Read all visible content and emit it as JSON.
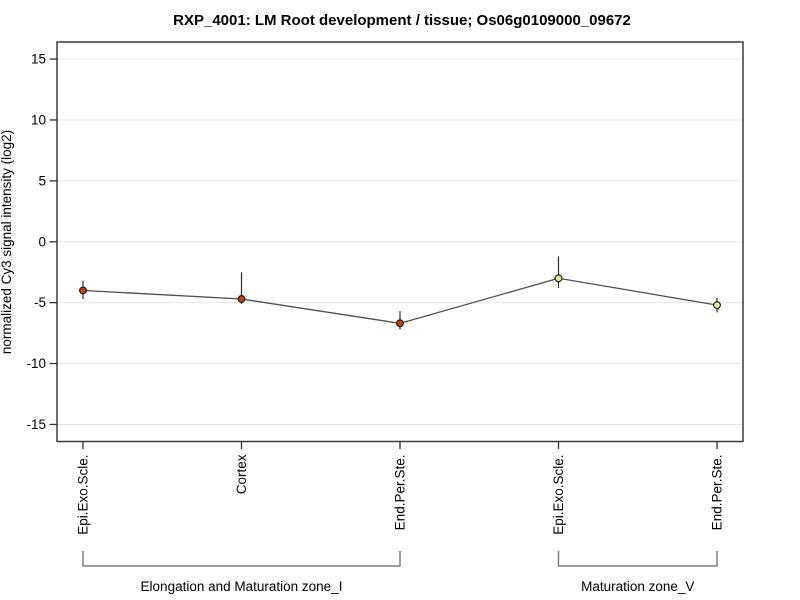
{
  "title": "RXP_4001: LM Root development / tissue; Os06g0109000_09672",
  "chart_data": {
    "type": "line",
    "title": "RXP_4001: LM Root development / tissue; Os06g0109000_09672",
    "xlabel": "",
    "ylabel": "normalized Cy3 signal intensity (log2)",
    "ylim": [
      -16.4,
      16.4
    ],
    "yticks": [
      15,
      10,
      5,
      0,
      -5,
      -10,
      -15
    ],
    "grid": "horizontal light-gray lines at every y tick",
    "legend": "none",
    "categories": [
      "Epi.Exo.Scle.",
      "Cortex",
      "End.Per.Ste.",
      "Epi.Exo.Scle.",
      "End.Per.Ste."
    ],
    "series": [
      {
        "name": "normalized Cy3 signal intensity",
        "values": [
          -4.0,
          -4.7,
          -6.7,
          -3.0,
          -5.2
        ],
        "error_high": [
          -3.2,
          -2.5,
          -5.7,
          -1.2,
          -4.6
        ],
        "error_low": [
          -4.7,
          -5.1,
          -7.2,
          -3.8,
          -5.8
        ]
      }
    ],
    "point_colors": [
      "#c64102",
      "#c64102",
      "#c64102",
      "#e7e79f",
      "#e7e79f"
    ],
    "groups": [
      {
        "label": "Elongation and Maturation zone_I",
        "start": 0,
        "end": 2
      },
      {
        "label": "Maturation zone_V",
        "start": 3,
        "end": 4
      }
    ],
    "colors": {
      "line": "#4d4d4d",
      "frame": "#3c3c3c",
      "grid": "#e8e8e8",
      "error_bar": "#2b2b2b",
      "point_stroke": "#1a1a1a",
      "tick": "#333333",
      "bracket": "#7f7f7f",
      "background": "#ffffff"
    }
  }
}
